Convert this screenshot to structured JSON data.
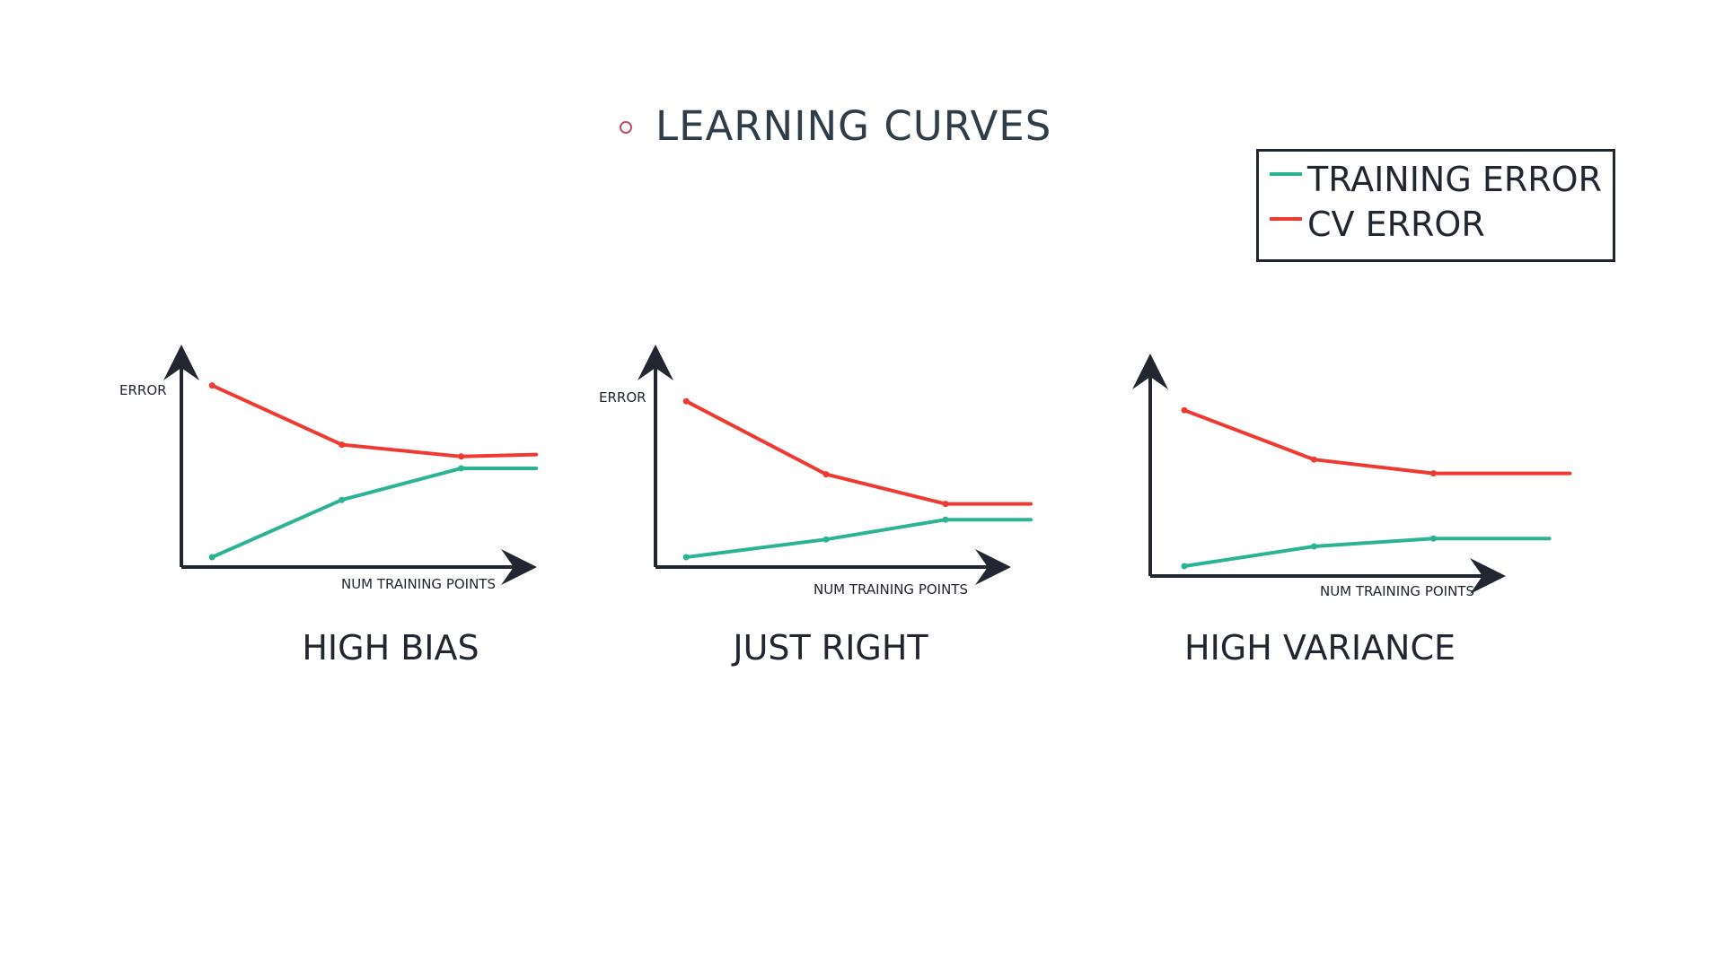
{
  "slide": {
    "title": "LEARNING CURVES"
  },
  "colors": {
    "training": "#2bb394",
    "cv": "#ee3a33",
    "axis": "#222631",
    "title": "#2e3d48",
    "bullet": "#c04a6a"
  },
  "legend": {
    "items": [
      {
        "label": "TRAINING ERROR",
        "color": "#2bb394"
      },
      {
        "label": "CV ERROR",
        "color": "#ee3a33"
      }
    ]
  },
  "chart_data": [
    {
      "type": "line",
      "title": "HIGH BIAS",
      "xlabel": "NUM TRAINING POINTS",
      "ylabel": "ERROR",
      "xlim": [
        0,
        10
      ],
      "ylim": [
        0,
        10
      ],
      "grid": false,
      "legend_position": "top-right",
      "series": [
        {
          "name": "CV ERROR",
          "x": [
            0.9,
            4.7,
            8.2,
            10.4
          ],
          "y": [
            9.2,
            6.2,
            5.6,
            5.7
          ]
        },
        {
          "name": "TRAINING ERROR",
          "x": [
            0.9,
            4.7,
            8.2,
            10.4
          ],
          "y": [
            0.5,
            3.4,
            5.0,
            5.0
          ]
        }
      ]
    },
    {
      "type": "line",
      "title": "JUST RIGHT",
      "xlabel": "NUM TRAINING POINTS",
      "ylabel": "ERROR",
      "xlim": [
        0,
        10
      ],
      "ylim": [
        0,
        10
      ],
      "grid": false,
      "legend_position": "top-right",
      "series": [
        {
          "name": "CV ERROR",
          "x": [
            0.9,
            5.0,
            8.5,
            11.0
          ],
          "y": [
            8.4,
            4.7,
            3.2,
            3.2
          ]
        },
        {
          "name": "TRAINING ERROR",
          "x": [
            0.9,
            5.0,
            8.5,
            11.0
          ],
          "y": [
            0.5,
            1.4,
            2.4,
            2.4
          ]
        }
      ]
    },
    {
      "type": "line",
      "title": "HIGH VARIANCE",
      "xlabel": "NUM TRAINING POINTS",
      "ylabel": "",
      "xlim": [
        0,
        10
      ],
      "ylim": [
        0,
        10
      ],
      "grid": false,
      "legend_position": "top-right",
      "series": [
        {
          "name": "CV ERROR",
          "x": [
            1.0,
            4.8,
            8.3,
            12.3
          ],
          "y": [
            8.4,
            5.9,
            5.2,
            5.2
          ]
        },
        {
          "name": "TRAINING ERROR",
          "x": [
            1.0,
            4.8,
            8.3,
            11.7
          ],
          "y": [
            0.5,
            1.5,
            1.9,
            1.9
          ]
        }
      ]
    }
  ]
}
